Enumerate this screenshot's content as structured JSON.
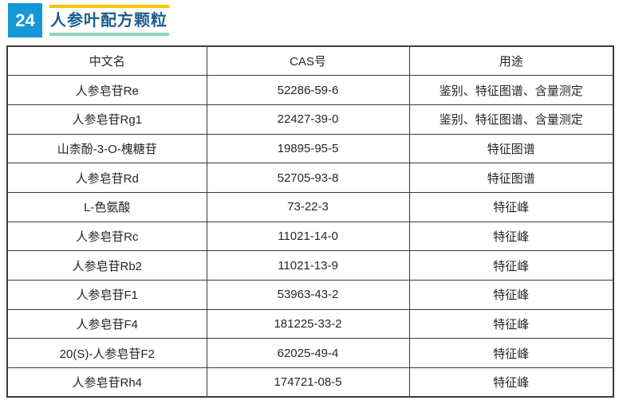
{
  "header": {
    "number": "24",
    "title": "人参叶配方颗粒"
  },
  "table": {
    "headers": [
      "中文名",
      "CAS号",
      "用途"
    ],
    "rows": [
      [
        "人参皂苷Re",
        "52286-59-6",
        "鉴别、特征图谱、含量测定"
      ],
      [
        "人参皂苷Rg1",
        "22427-39-0",
        "鉴别、特征图谱、含量测定"
      ],
      [
        "山柰酚-3-O-槐糖苷",
        "19895-95-5",
        "特征图谱"
      ],
      [
        "人参皂苷Rd",
        "52705-93-8",
        "特征图谱"
      ],
      [
        "L-色氨酸",
        "73-22-3",
        "特征峰"
      ],
      [
        "人参皂苷Rc",
        "11021-14-0",
        "特征峰"
      ],
      [
        "人参皂苷Rb2",
        "11021-13-9",
        "特征峰"
      ],
      [
        "人参皂苷F1",
        "53963-43-2",
        "特征峰"
      ],
      [
        "人参皂苷F4",
        "181225-33-2",
        "特征峰"
      ],
      [
        "20(S)-人参皂苷F2",
        "62025-49-4",
        "特征峰"
      ],
      [
        "人参皂苷Rh4",
        "174721-08-5",
        "特征峰"
      ]
    ]
  },
  "colors": {
    "accent_blue": "#1697D6",
    "title_blue": "#1D5C8D",
    "accent_yellow": "#F3C400",
    "accent_teal": "#8CD4BE",
    "table_border": "#3B3B3B",
    "text_color": "#262626"
  }
}
